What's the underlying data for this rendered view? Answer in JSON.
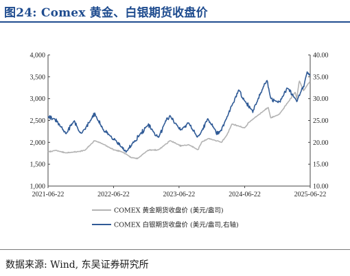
{
  "figure": {
    "title": "图24:  Comex 黄金、白银期货收盘价",
    "source": "数据来源:  Wind,  东吴证券研究所"
  },
  "colors": {
    "gold": "#b3b3b3",
    "silver": "#2f5a96",
    "title": "#1f4c8f",
    "axis": "#444444"
  },
  "chart_data": {
    "type": "line",
    "title": "",
    "x_ticks": [
      "2021-06-22",
      "2022-06-22",
      "2023-06-22",
      "2024-06-22",
      "2025-06-22"
    ],
    "x_range": [
      "2021-06-22",
      "2025-06-22"
    ],
    "y_left": {
      "range": [
        1000,
        4000
      ],
      "ticks": [
        "1,000",
        "1,500",
        "2,000",
        "2,500",
        "3,000",
        "3,500",
        "4,000"
      ]
    },
    "y_right": {
      "range": [
        10,
        40
      ],
      "ticks": [
        "10.00",
        "15.00",
        "20.00",
        "25.00",
        "30.00",
        "35.00",
        "40.00"
      ]
    },
    "legend_position": "bottom",
    "grid": false,
    "series": [
      {
        "name": "COMEX 黄金期货收盘价 (美元/盎司)",
        "axis": "left",
        "x": [
          "2021-06-22",
          "2021-08-01",
          "2021-10-01",
          "2021-12-01",
          "2022-01-15",
          "2022-03-08",
          "2022-04-18",
          "2022-06-22",
          "2022-08-15",
          "2022-09-28",
          "2022-11-03",
          "2022-12-31",
          "2023-02-28",
          "2023-05-04",
          "2023-06-30",
          "2023-08-15",
          "2023-10-06",
          "2023-10-27",
          "2023-12-04",
          "2024-02-14",
          "2024-03-15",
          "2024-04-12",
          "2024-06-22",
          "2024-07-16",
          "2024-09-26",
          "2024-10-31",
          "2024-11-14",
          "2024-12-31",
          "2025-02-24",
          "2025-03-31",
          "2025-04-08",
          "2025-04-22",
          "2025-05-15",
          "2025-06-22"
        ],
        "values": [
          1780,
          1815,
          1760,
          1785,
          1820,
          2040,
          1975,
          1830,
          1775,
          1655,
          1630,
          1820,
          1830,
          2040,
          1920,
          1945,
          1830,
          2010,
          2090,
          2000,
          2170,
          2420,
          2330,
          2460,
          2690,
          2800,
          2560,
          2640,
          2950,
          3150,
          2980,
          3420,
          3180,
          3400
        ]
      },
      {
        "name": "COMEX 白银期货收盘价 (美元/盎司,右轴)",
        "axis": "right",
        "x": [
          "2021-06-22",
          "2021-08-01",
          "2021-09-30",
          "2021-11-15",
          "2021-12-15",
          "2022-01-15",
          "2022-03-08",
          "2022-05-01",
          "2022-06-22",
          "2022-09-01",
          "2022-10-01",
          "2022-12-31",
          "2023-02-28",
          "2023-04-15",
          "2023-05-04",
          "2023-06-30",
          "2023-08-15",
          "2023-10-06",
          "2023-11-30",
          "2024-01-22",
          "2024-02-14",
          "2024-04-12",
          "2024-05-20",
          "2024-06-22",
          "2024-08-07",
          "2024-10-22",
          "2024-11-14",
          "2024-12-31",
          "2025-02-14",
          "2025-04-08",
          "2025-05-15",
          "2025-06-05",
          "2025-06-22"
        ],
        "values": [
          26.0,
          25.2,
          22.0,
          25.0,
          22.2,
          23.0,
          26.5,
          22.5,
          21.0,
          17.8,
          19.5,
          24.0,
          21.0,
          25.5,
          26.0,
          22.8,
          24.5,
          21.0,
          25.4,
          22.0,
          22.8,
          28.4,
          32.0,
          29.5,
          27.0,
          34.5,
          30.0,
          29.0,
          32.5,
          29.5,
          32.8,
          36.0,
          35.6
        ]
      }
    ]
  }
}
